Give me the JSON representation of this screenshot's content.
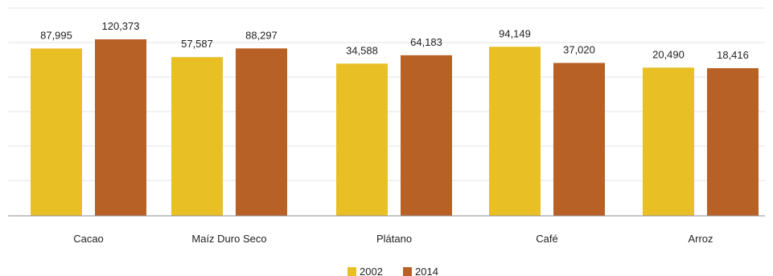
{
  "chart_data": {
    "type": "bar",
    "categories": [
      "Cacao",
      "Maíz Duro Seco",
      "Plátano",
      "Café",
      "Arroz"
    ],
    "series": [
      {
        "name": "2002",
        "color": "#E9BF26",
        "values": [
          87995,
          57587,
          34588,
          94149,
          20490
        ],
        "labels": [
          "87,995",
          "57,587",
          "34,588",
          "94,149",
          "20,490"
        ]
      },
      {
        "name": "2014",
        "color": "#B86127",
        "values": [
          120373,
          88297,
          64183,
          37020,
          18416
        ],
        "labels": [
          "120,373",
          "88,297",
          "64,183",
          "37,020",
          "18,416"
        ]
      }
    ],
    "title": "",
    "xlabel": "",
    "ylabel": "",
    "grid": true,
    "legend_position": "bottom"
  }
}
